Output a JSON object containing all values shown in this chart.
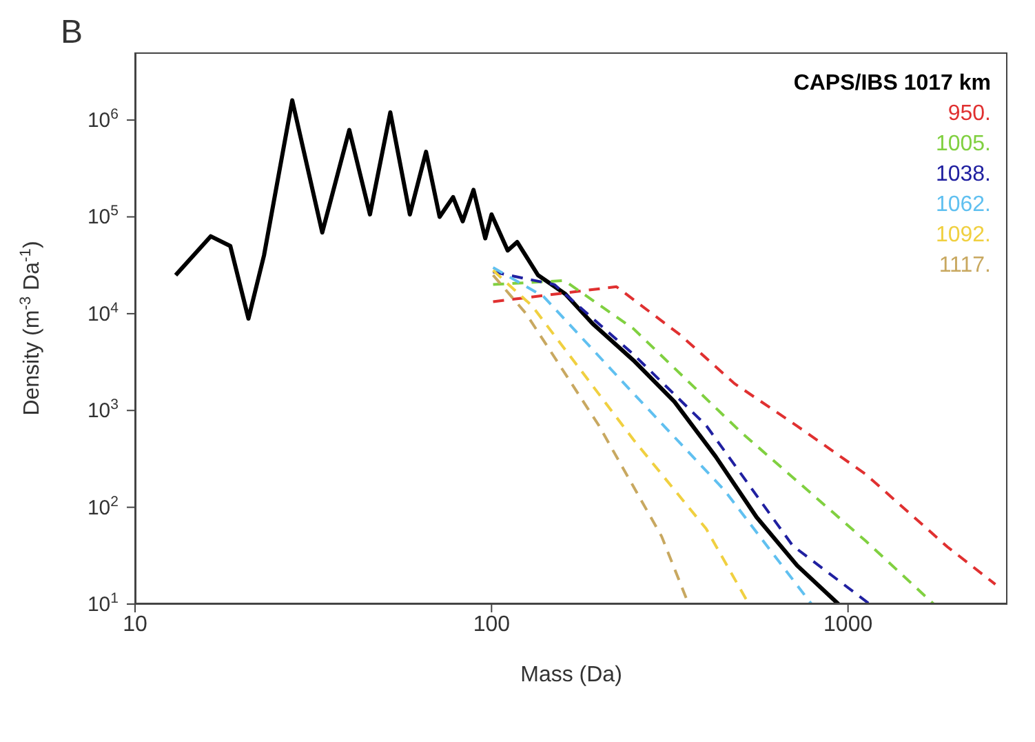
{
  "chart_data": {
    "type": "line",
    "xlabel": "Mass (Da)",
    "ylabel": "Density (m$^{-3}$ Da$^{-1}$)",
    "annotations": [
      "B"
    ],
    "log": "xy",
    "xlim": [
      10,
      2800
    ],
    "xticks": [
      10,
      100,
      1000
    ],
    "ylim": [
      10,
      5000000
    ],
    "yticks": [
      {
        "value": 10,
        "label": "10$^{1}$"
      },
      {
        "value": 100,
        "label": "10$^{2}$"
      },
      {
        "value": 1000,
        "label": "10$^{3}$"
      },
      {
        "value": 10000,
        "label": "10$^{4}$"
      },
      {
        "value": 100000,
        "label": "10$^{5}$"
      },
      {
        "value": 1000000,
        "label": "10$^{6}$"
      }
    ],
    "legend": "top right",
    "marker": "none",
    "series": [
      {
        "name": "CAPS/IBS 1017 km",
        "color": "#000000",
        "line_style": "solid",
        "x": [
          13,
          16.3,
          18.5,
          20.8,
          23,
          27.6,
          33.5,
          39.9,
          45.6,
          52,
          59,
          65.5,
          71.5,
          78,
          83,
          89,
          96,
          100,
          111,
          118,
          135,
          161,
          192,
          250,
          326,
          425,
          554,
          720,
          940
        ],
        "values": [
          25000,
          63000,
          50000,
          8900,
          40000,
          1600000,
          69000,
          790000,
          106000,
          1200000,
          106000,
          470000,
          100000,
          160000,
          90000,
          190000,
          60000,
          106000,
          45000,
          55000,
          25000,
          16000,
          7900,
          3300,
          1230,
          335,
          79,
          25,
          10
        ]
      },
      {
        "name": "950.",
        "color": "#e03030",
        "line_style": "dashed",
        "x": [
          101,
          224,
          339,
          480,
          720,
          1120,
          1900,
          2590
        ],
        "values": [
          13300,
          19000,
          6000,
          1900,
          690,
          220,
          39,
          16
        ]
      },
      {
        "name": "1005.",
        "color": "#80d040",
        "line_style": "dashed",
        "x": [
          101,
          160,
          250,
          500,
          1120,
          1740
        ],
        "values": [
          20000,
          22000,
          7000,
          600,
          45,
          10
        ]
      },
      {
        "name": "1038.",
        "color": "#2020a0",
        "line_style": "dashed",
        "x": [
          101,
          150,
          250,
          400,
          700,
          1150
        ],
        "values": [
          27000,
          20000,
          3800,
          700,
          40,
          10
        ]
      },
      {
        "name": "1062.",
        "color": "#60c0f0",
        "line_style": "dashed",
        "x": [
          101,
          140,
          250,
          450,
          790
        ],
        "values": [
          30000,
          15000,
          1500,
          150,
          10
        ]
      },
      {
        "name": "1092.",
        "color": "#f0d040",
        "line_style": "dashed",
        "x": [
          101,
          130,
          250,
          400,
          527
        ],
        "values": [
          28000,
          12000,
          500,
          60,
          10
        ]
      },
      {
        "name": "1117.",
        "color": "#c8a860",
        "line_style": "dashed",
        "x": [
          101,
          125,
          200,
          300,
          357
        ],
        "values": [
          25000,
          10000,
          700,
          50,
          10
        ]
      }
    ]
  }
}
